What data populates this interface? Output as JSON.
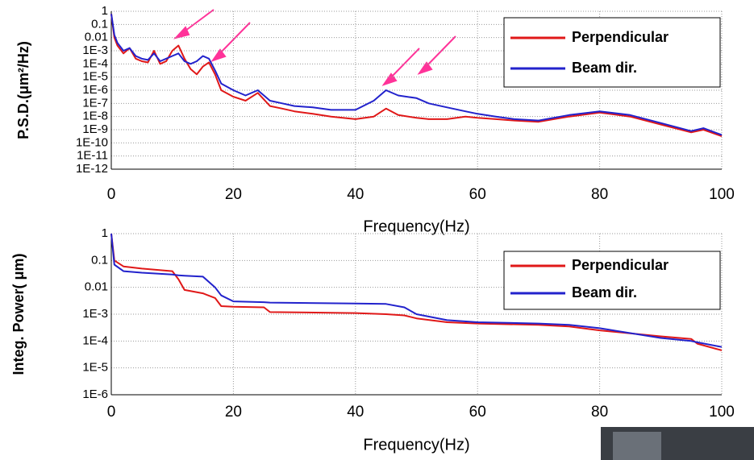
{
  "chart_data": [
    {
      "type": "line",
      "ylabel": "P.S.D.(μm²/Hz)",
      "xlabel": "Frequency(Hz)",
      "log_y": true,
      "grid": true,
      "legend": "upper right",
      "xlim": [
        0,
        100
      ],
      "xticks": [
        0,
        20,
        40,
        60,
        80,
        100
      ],
      "ylim": [
        1e-12,
        1
      ],
      "yticks": [
        {
          "value": 1e-12,
          "label": "1E-12"
        },
        {
          "value": 1e-11,
          "label": "1E-11"
        },
        {
          "value": 1e-10,
          "label": "1E-10"
        },
        {
          "value": 1e-09,
          "label": "1E-9"
        },
        {
          "value": 1e-08,
          "label": "1E-8"
        },
        {
          "value": 1e-07,
          "label": "1E-7"
        },
        {
          "value": 1e-06,
          "label": "1E-6"
        },
        {
          "value": 1e-05,
          "label": "1E-5"
        },
        {
          "value": 0.0001,
          "label": "1E-4"
        },
        {
          "value": 0.001,
          "label": "1E-3"
        },
        0.01,
        0.1,
        1
      ],
      "x": [
        0,
        0.5,
        1,
        2,
        3,
        4,
        5,
        6,
        7,
        8,
        9,
        10,
        11,
        12,
        13,
        14,
        15,
        16,
        17,
        18,
        20,
        22,
        24,
        26,
        28,
        30,
        33,
        36,
        40,
        43,
        45,
        47,
        50,
        52,
        55,
        58,
        60,
        63,
        66,
        70,
        75,
        80,
        85,
        90,
        95,
        97,
        100
      ],
      "series": [
        {
          "name": "Perpendicular",
          "color": "#e01818",
          "values": [
            0.63,
            0.01,
            0.0025,
            0.00063,
            0.0016,
            0.00025,
            0.00016,
            0.00013,
            0.001,
            0.0001,
            0.00016,
            0.001,
            0.0025,
            0.00025,
            4e-05,
            1.6e-05,
            6.3e-05,
            0.00013,
            1.6e-05,
            1e-06,
            3.2e-07,
            1.6e-07,
            6.3e-07,
            6.3e-08,
            4e-08,
            2.5e-08,
            1.6e-08,
            1e-08,
            6.3e-09,
            1e-08,
            4e-08,
            1.3e-08,
            7.9e-09,
            6.3e-09,
            6.3e-09,
            1e-08,
            7.9e-09,
            6.3e-09,
            5e-09,
            4e-09,
            1e-08,
            2e-08,
            1e-08,
            2.5e-09,
            6.3e-10,
            1e-09,
            3.2e-10
          ]
        },
        {
          "name": "Beam dir.",
          "color": "#2222cc",
          "values": [
            0.63,
            0.016,
            0.004,
            0.001,
            0.0016,
            0.0004,
            0.00025,
            0.0002,
            0.00063,
            0.00016,
            0.00025,
            0.0004,
            0.00063,
            0.00016,
            0.0001,
            0.00016,
            0.0004,
            0.00025,
            3.2e-05,
            3.2e-06,
            1e-06,
            4e-07,
            1e-06,
            1.6e-07,
            1e-07,
            6.3e-08,
            5e-08,
            3.2e-08,
            3.2e-08,
            1.6e-07,
            1e-06,
            4e-07,
            2.5e-07,
            1e-07,
            5e-08,
            2.5e-08,
            1.6e-08,
            1e-08,
            6.3e-09,
            5e-09,
            1.3e-08,
            2.5e-08,
            1.3e-08,
            3.2e-09,
            7.9e-10,
            1.3e-09,
            4e-10
          ]
        }
      ]
    },
    {
      "type": "line",
      "ylabel": "Integ. Power(  μm)",
      "xlabel": "Frequency(Hz)",
      "log_y": true,
      "grid": true,
      "legend": "upper right",
      "xlim": [
        0,
        100
      ],
      "xticks": [
        0,
        20,
        40,
        60,
        80,
        100
      ],
      "ylim": [
        1e-06,
        1
      ],
      "yticks": [
        {
          "value": 1e-06,
          "label": "1E-6"
        },
        {
          "value": 1e-05,
          "label": "1E-5"
        },
        {
          "value": 0.0001,
          "label": "1E-4"
        },
        {
          "value": 0.001,
          "label": "1E-3"
        },
        0.01,
        0.1,
        1
      ],
      "x": [
        0,
        0.5,
        2,
        5,
        10,
        11,
        12,
        15,
        17,
        18,
        20,
        25,
        26,
        40,
        45,
        48,
        50,
        55,
        60,
        70,
        75,
        80,
        90,
        95,
        96,
        100
      ],
      "series": [
        {
          "name": "Perpendicular",
          "color": "#e01818",
          "values": [
            1,
            0.1,
            0.06,
            0.05,
            0.04,
            0.02,
            0.008,
            0.006,
            0.004,
            0.002,
            0.0019,
            0.0018,
            0.0012,
            0.0011,
            0.001,
            0.0009,
            0.0007,
            0.0005,
            0.00045,
            0.0004,
            0.00035,
            0.00025,
            0.00015,
            0.00012,
            8e-05,
            4.5e-05
          ]
        },
        {
          "name": "Beam dir.",
          "color": "#2222cc",
          "values": [
            1,
            0.07,
            0.04,
            0.035,
            0.03,
            0.028,
            0.027,
            0.025,
            0.01,
            0.005,
            0.003,
            0.0028,
            0.0027,
            0.0025,
            0.0024,
            0.0018,
            0.001,
            0.0006,
            0.0005,
            0.00045,
            0.0004,
            0.0003,
            0.00013,
            0.0001,
            9e-05,
            6e-05
          ]
        }
      ]
    }
  ]
}
